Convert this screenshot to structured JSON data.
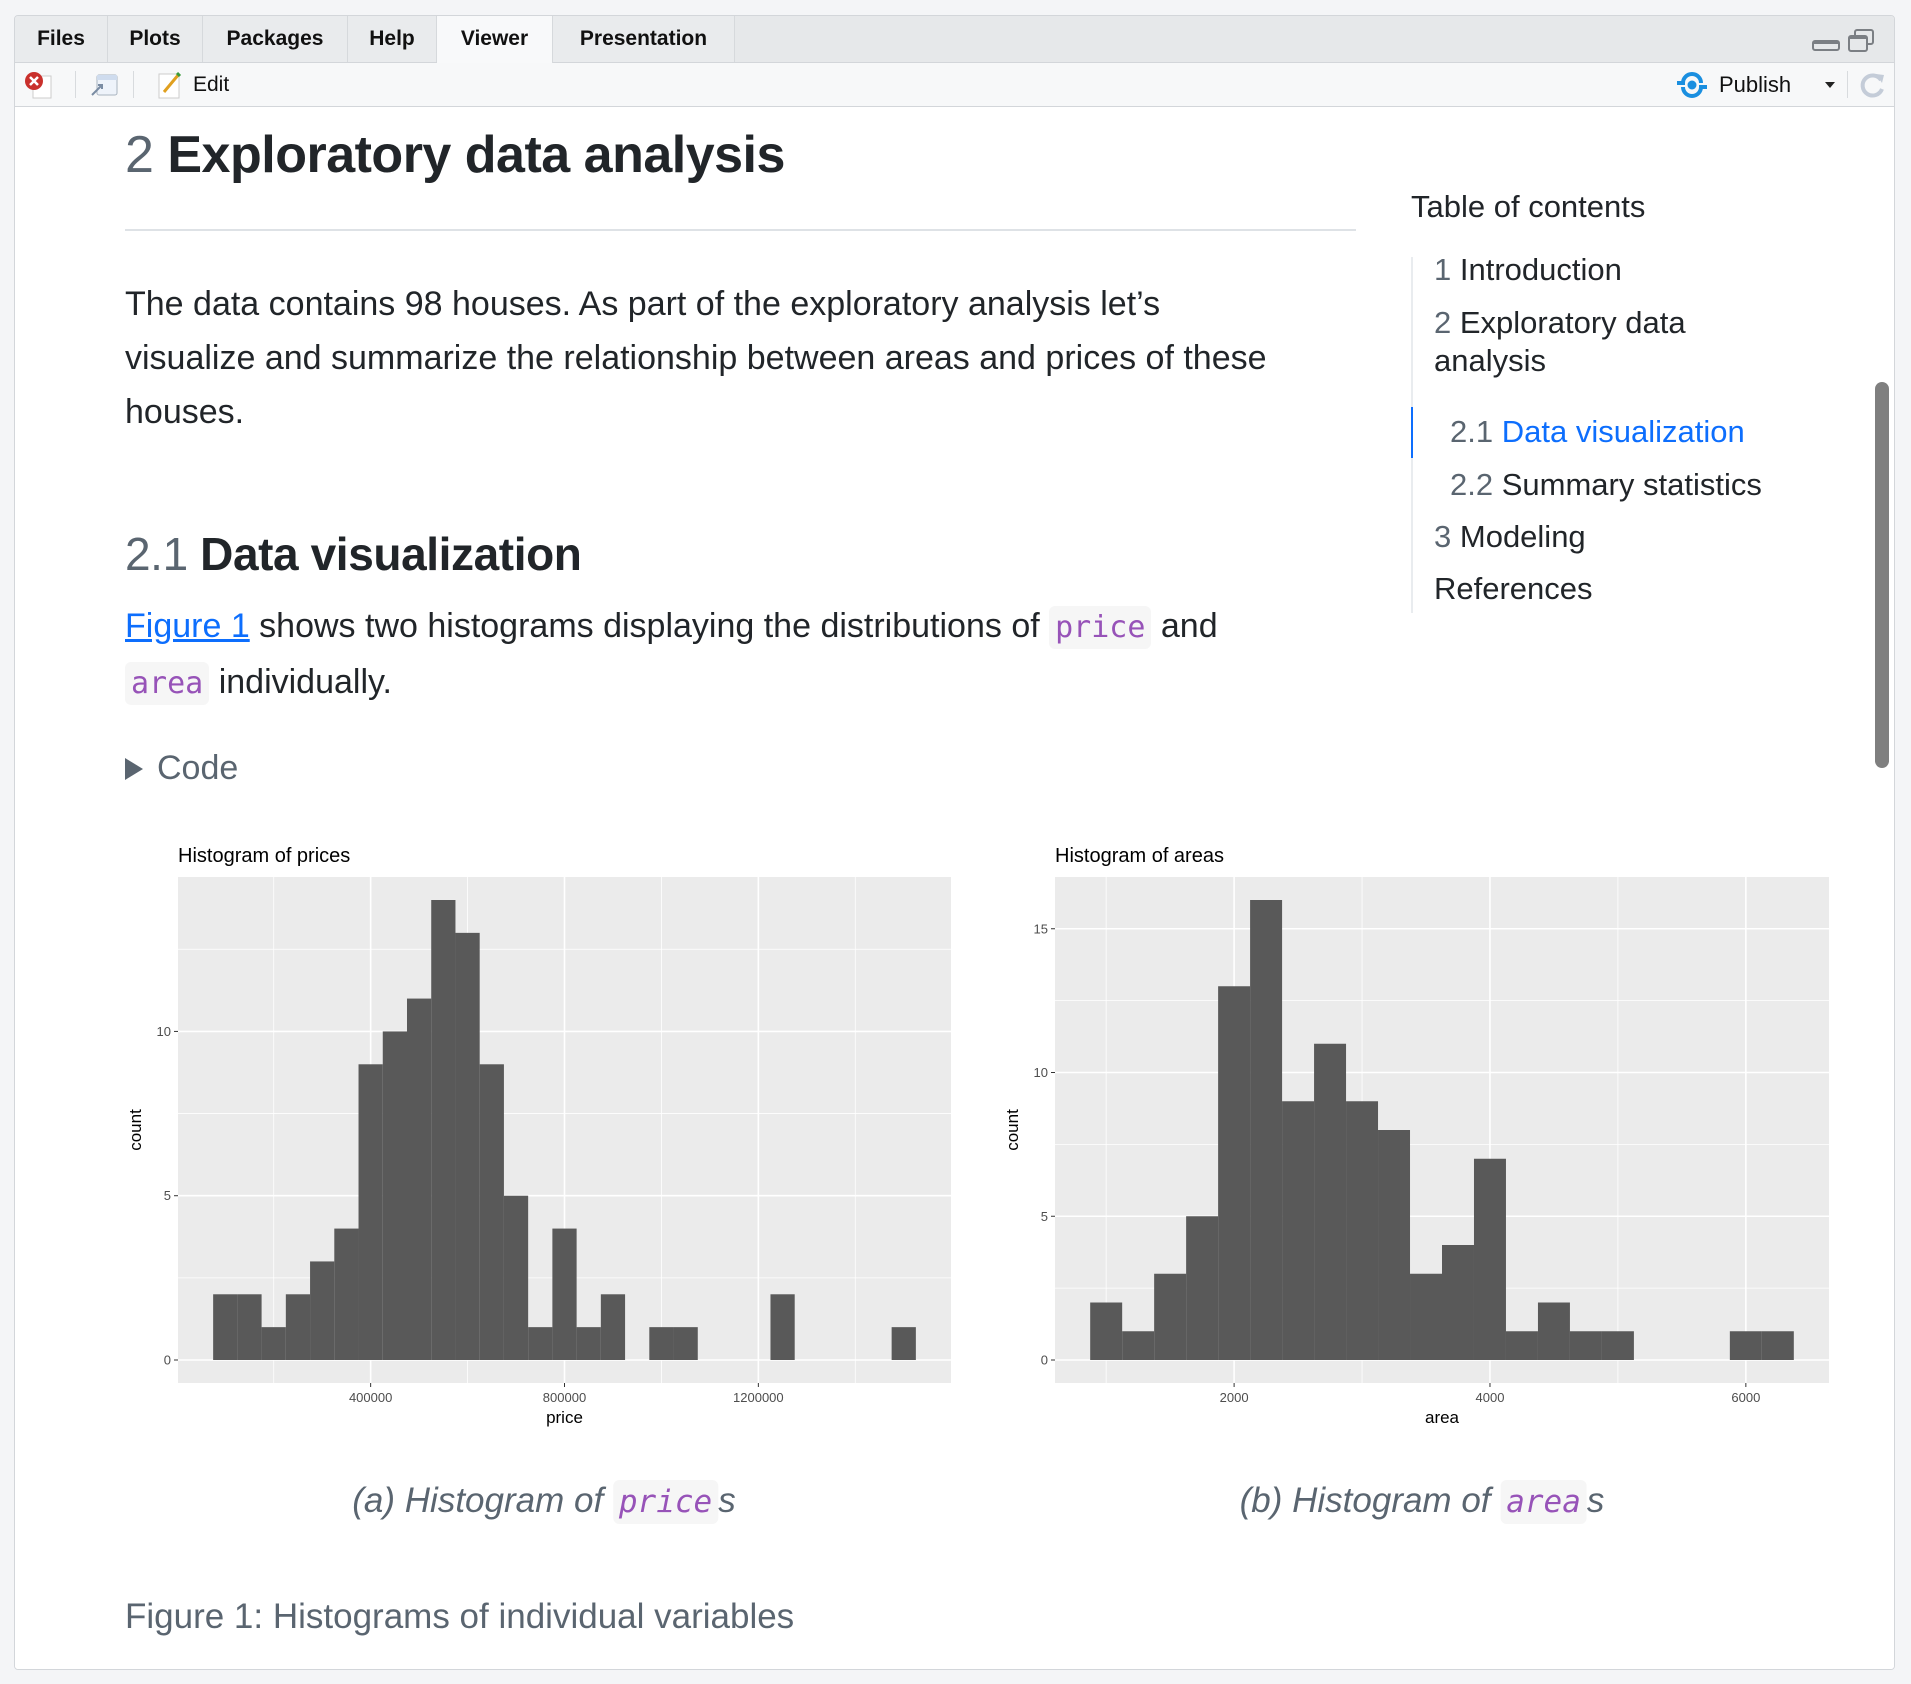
{
  "tabs": [
    {
      "label": "Files"
    },
    {
      "label": "Plots"
    },
    {
      "label": "Packages"
    },
    {
      "label": "Help"
    },
    {
      "label": "Viewer",
      "active": true
    },
    {
      "label": "Presentation"
    }
  ],
  "toolbar": {
    "edit_label": "Edit",
    "publish_label": "Publish",
    "icons": [
      "close-icon",
      "popout-icon",
      "edit-icon",
      "publish-icon",
      "dropdown-icon",
      "refresh-icon",
      "minimize-icon",
      "restore-icon"
    ]
  },
  "colors": {
    "accent": "#0d6efd",
    "code": "#9753b8",
    "bar": "#595959",
    "panel": "#ebebeb"
  },
  "doc": {
    "h1_num": "2",
    "h1_text": "Exploratory data analysis",
    "para1_lines": [
      "The data contains 98 houses. As part of the exploratory analysis let’s",
      "visualize and summarize the relationship between areas and prices of these",
      "houses."
    ],
    "h2_num": "2.1",
    "h2_text": "Data visualization",
    "para2": {
      "link": "Figure 1",
      "t1": " shows two histograms displaying the distributions of ",
      "code1": "price",
      "t2": " and",
      "code2": "area",
      "t3": " individually."
    },
    "code_fold_label": "Code",
    "subcaption_a": {
      "prefix": "(a) Histogram of ",
      "code": "price",
      "suffix": "s"
    },
    "subcaption_b": {
      "prefix": "(b) Histogram of ",
      "code": "area",
      "suffix": "s"
    },
    "figure_caption": "Figure 1: Histograms of individual variables"
  },
  "toc": {
    "title": "Table of contents",
    "items": [
      {
        "num": "1",
        "label": "Introduction"
      },
      {
        "num": "2",
        "label": "Exploratory data",
        "label2": "analysis"
      },
      {
        "num": "2.1",
        "label": "Data visualization",
        "active": true
      },
      {
        "num": "2.2",
        "label": "Summary statistics"
      },
      {
        "num": "3",
        "label": "Modeling"
      },
      {
        "num": "",
        "label": "References"
      }
    ]
  },
  "chart_data": [
    {
      "type": "bar",
      "title": "Histogram of prices",
      "xlabel": "price",
      "ylabel": "count",
      "bin_start": 75000,
      "bin_width": 50000,
      "counts": [
        2,
        2,
        1,
        2,
        3,
        4,
        9,
        10,
        11,
        14,
        13,
        9,
        5,
        1,
        4,
        1,
        2,
        0,
        1,
        1,
        0,
        0,
        0,
        2,
        0,
        0,
        0,
        0,
        1
      ],
      "xlim": [
        2500,
        1597500
      ],
      "ylim": [
        -0.7,
        14.7
      ],
      "xticks": [
        400000,
        800000,
        1200000
      ],
      "xtick_labels": [
        "400000",
        "800000",
        "1200000"
      ],
      "xminor": [
        200000,
        600000,
        1000000,
        1400000
      ],
      "yticks": [
        0,
        5,
        10
      ],
      "ytick_labels": [
        "0",
        "5",
        "10"
      ],
      "yminor": [
        2.5,
        7.5,
        12.5
      ],
      "grid": true
    },
    {
      "type": "bar",
      "title": "Histogram of areas",
      "xlabel": "area",
      "ylabel": "count",
      "bin_start": 875,
      "bin_width": 250,
      "counts": [
        2,
        1,
        3,
        5,
        13,
        16,
        9,
        11,
        9,
        8,
        3,
        4,
        7,
        1,
        2,
        1,
        1,
        0,
        0,
        0,
        1,
        1
      ],
      "xlim": [
        600,
        6650
      ],
      "ylim": [
        -0.8,
        16.8
      ],
      "xticks": [
        2000,
        4000,
        6000
      ],
      "xtick_labels": [
        "2000",
        "4000",
        "6000"
      ],
      "xminor": [
        1000,
        3000,
        5000
      ],
      "yticks": [
        0,
        5,
        10,
        15
      ],
      "ytick_labels": [
        "0",
        "5",
        "10",
        "15"
      ],
      "yminor": [
        2.5,
        7.5,
        12.5
      ],
      "grid": true
    }
  ]
}
